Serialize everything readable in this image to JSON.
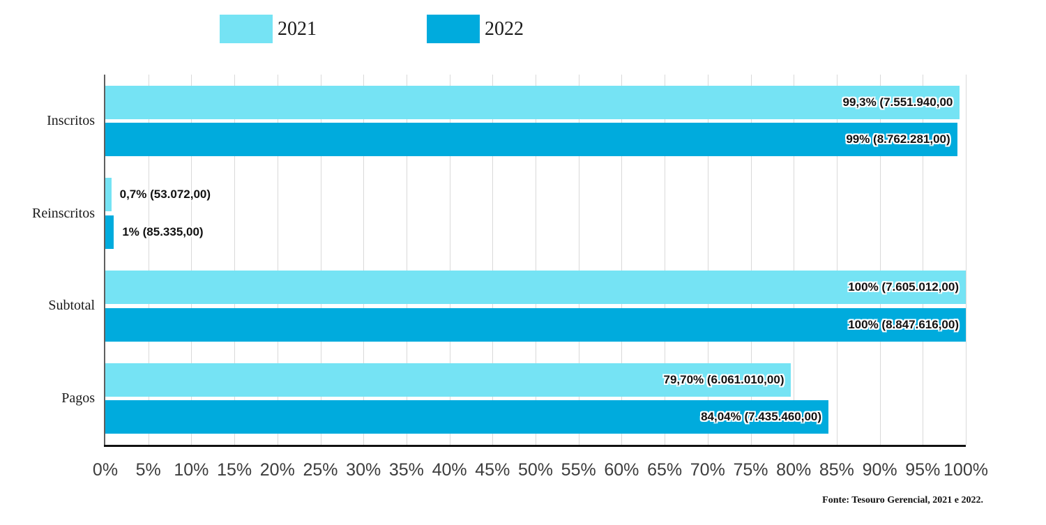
{
  "chart_data": {
    "type": "bar",
    "orientation": "horizontal",
    "title": "",
    "categories": [
      "Inscritos",
      "Reinscritos",
      "Subtotal",
      "Pagos"
    ],
    "series": [
      {
        "name": "2021",
        "color": "#75E3F4",
        "values": [
          99.3,
          0.7,
          100,
          79.7
        ],
        "bar_labels": [
          "99,3% (7.551.940,00",
          "0,7% (53.072,00)",
          "100% (7.605.012,00)",
          "79,70% (6.061.010,00)"
        ]
      },
      {
        "name": "2022",
        "color": "#00ABDD",
        "values": [
          99,
          1,
          100,
          84.04
        ],
        "bar_labels": [
          "99% (8.762.281,00)",
          "1% (85.335,00)",
          "100% (8.847.616,00)",
          "84,04% (7.435.460,00)"
        ]
      }
    ],
    "x_axis": {
      "min": 0,
      "max": 100,
      "tick_labels": [
        "0%",
        "5%",
        "10%",
        "15%",
        "20%",
        "25%",
        "30%",
        "35%",
        "40%",
        "45%",
        "50%",
        "55%",
        "60%",
        "65%",
        "70%",
        "75%",
        "80%",
        "85%",
        "90%",
        "95%",
        "100%"
      ],
      "grid": true
    },
    "legend_position": "top",
    "source_note": "Fonte: Tesouro Gerencial, 2021 e 2022."
  }
}
